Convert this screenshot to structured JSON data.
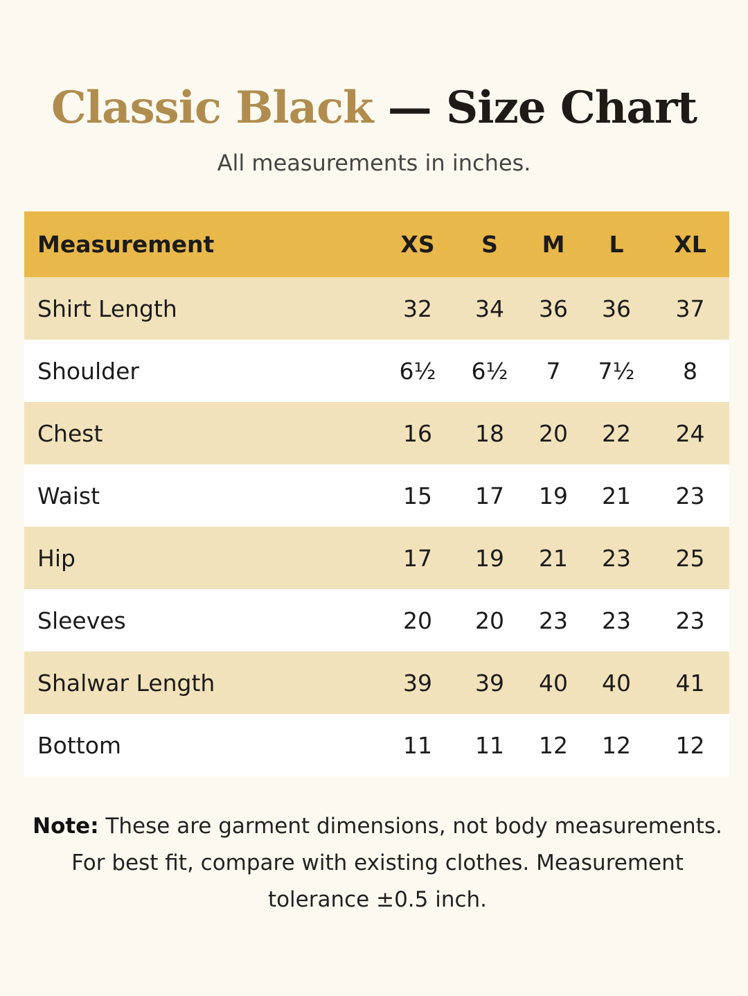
{
  "header": {
    "title_accent": "Classic Black",
    "title_dash": "—",
    "title_main": "Size Chart",
    "subtitle": "All measurements in inches."
  },
  "table": {
    "columns": [
      "Measurement",
      "XS",
      "S",
      "M",
      "L",
      "XL"
    ],
    "rows": [
      [
        "Shirt Length",
        "32",
        "34",
        "36",
        "36",
        "37"
      ],
      [
        "Shoulder",
        "6½",
        "6½",
        "7",
        "7½",
        "8"
      ],
      [
        "Chest",
        "16",
        "18",
        "20",
        "22",
        "24"
      ],
      [
        "Waist",
        "15",
        "17",
        "19",
        "21",
        "23"
      ],
      [
        "Hip",
        "17",
        "19",
        "21",
        "23",
        "25"
      ],
      [
        "Sleeves",
        "20",
        "20",
        "23",
        "23",
        "23"
      ],
      [
        "Shalwar Length",
        "39",
        "39",
        "40",
        "40",
        "41"
      ],
      [
        "Bottom",
        "11",
        "11",
        "12",
        "12",
        "12"
      ]
    ]
  },
  "note": {
    "label": "Note:",
    "text": "These are garment dimensions, not body measurements. For best fit, compare with existing clothes. Measurement tolerance ±0.5 inch."
  }
}
